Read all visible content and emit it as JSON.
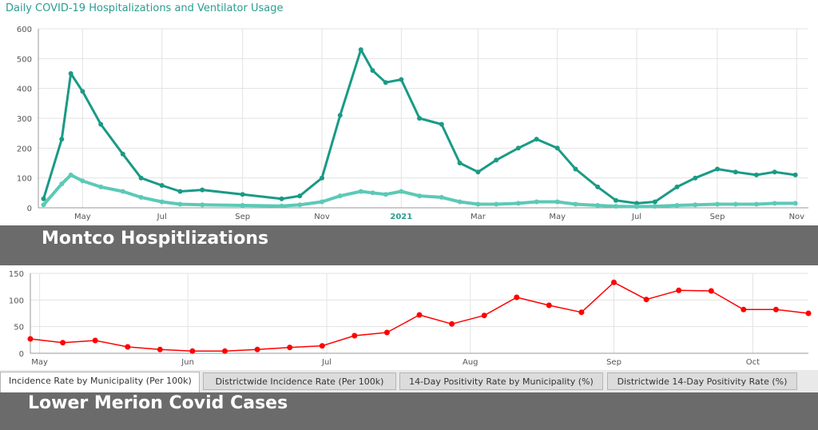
{
  "colors": {
    "title": "#2a9d8f",
    "hospitalized": "#1a9a86",
    "ventilator": "#5cc9b7",
    "incidence": "#ff0000",
    "banner": "#6b6b6b"
  },
  "top_panel": {
    "title": "Daily COVID-19 Hospitalizations and Ventilator Usage"
  },
  "banner_top": {
    "label": "Montco  Hospitlizations"
  },
  "tabs": [
    {
      "label": "Incidence Rate by Municipality (Per 100k)",
      "active": true
    },
    {
      "label": "Districtwide Incidence Rate (Per 100k)",
      "active": false
    },
    {
      "label": "14-Day Positivity Rate by Municipality (%)",
      "active": false
    },
    {
      "label": "Districtwide 14-Day Positivity Rate (%)",
      "active": false
    }
  ],
  "banner_bottom": {
    "label": "Lower Merion Covid Cases"
  },
  "chart_data": [
    {
      "type": "line",
      "title": "Daily COVID-19 Hospitalizations and Ventilator Usage",
      "xlabel": "",
      "ylabel": "",
      "ylim": [
        0,
        600
      ],
      "yticks": [
        "0",
        "100",
        "200",
        "300",
        "400",
        "500",
        "600"
      ],
      "xticks": [
        "May",
        "Jul",
        "Sep",
        "Nov",
        "2021",
        "Mar",
        "May",
        "Jul",
        "Sep",
        "Nov"
      ],
      "x": [
        "2020-04-01",
        "2020-04-15",
        "2020-04-22",
        "2020-05-01",
        "2020-05-15",
        "2020-06-01",
        "2020-06-15",
        "2020-07-01",
        "2020-07-15",
        "2020-08-01",
        "2020-09-01",
        "2020-10-01",
        "2020-10-15",
        "2020-11-01",
        "2020-11-15",
        "2020-12-01",
        "2020-12-10",
        "2020-12-20",
        "2021-01-01",
        "2021-01-15",
        "2021-02-01",
        "2021-02-15",
        "2021-03-01",
        "2021-03-15",
        "2021-04-01",
        "2021-04-15",
        "2021-05-01",
        "2021-05-15",
        "2021-06-01",
        "2021-06-15",
        "2021-07-01",
        "2021-07-15",
        "2021-08-01",
        "2021-08-15",
        "2021-09-01",
        "2021-09-15",
        "2021-10-01",
        "2021-10-15",
        "2021-10-31"
      ],
      "series": [
        {
          "name": "",
          "values": [
            30,
            230,
            450,
            390,
            280,
            180,
            100,
            75,
            55,
            60,
            45,
            30,
            40,
            100,
            310,
            530,
            460,
            420,
            430,
            300,
            280,
            150,
            120,
            160,
            200,
            230,
            200,
            130,
            70,
            25,
            15,
            20,
            70,
            100,
            130,
            120,
            110,
            120,
            110
          ]
        },
        {
          "name": "",
          "values": [
            10,
            80,
            110,
            90,
            70,
            55,
            35,
            20,
            12,
            10,
            8,
            6,
            10,
            20,
            40,
            55,
            50,
            45,
            55,
            40,
            35,
            20,
            12,
            12,
            15,
            20,
            20,
            12,
            8,
            5,
            4,
            5,
            8,
            10,
            12,
            12,
            12,
            15,
            15
          ]
        }
      ],
      "grid": true
    },
    {
      "type": "line",
      "title": "",
      "xlabel": "",
      "ylabel": "",
      "ylim": [
        0,
        150
      ],
      "yticks": [
        "0",
        "50",
        "100",
        "150"
      ],
      "xticks": [
        "May",
        "Jun",
        "Jul",
        "Aug",
        "Sep",
        "Oct"
      ],
      "x": [
        "2021-04-28",
        "2021-05-05",
        "2021-05-12",
        "2021-05-19",
        "2021-05-26",
        "2021-06-02",
        "2021-06-09",
        "2021-06-16",
        "2021-06-23",
        "2021-06-30",
        "2021-07-07",
        "2021-07-14",
        "2021-07-21",
        "2021-07-28",
        "2021-08-04",
        "2021-08-11",
        "2021-08-18",
        "2021-08-25",
        "2021-09-01",
        "2021-09-08",
        "2021-09-15",
        "2021-09-22",
        "2021-09-29",
        "2021-10-06",
        "2021-10-13"
      ],
      "series": [
        {
          "name": "",
          "values": [
            27,
            20,
            24,
            12,
            7,
            4,
            4,
            7,
            11,
            14,
            33,
            39,
            72,
            55,
            71,
            105,
            90,
            77,
            133,
            101,
            118,
            117,
            82,
            82,
            75
          ]
        }
      ],
      "grid": true
    }
  ]
}
